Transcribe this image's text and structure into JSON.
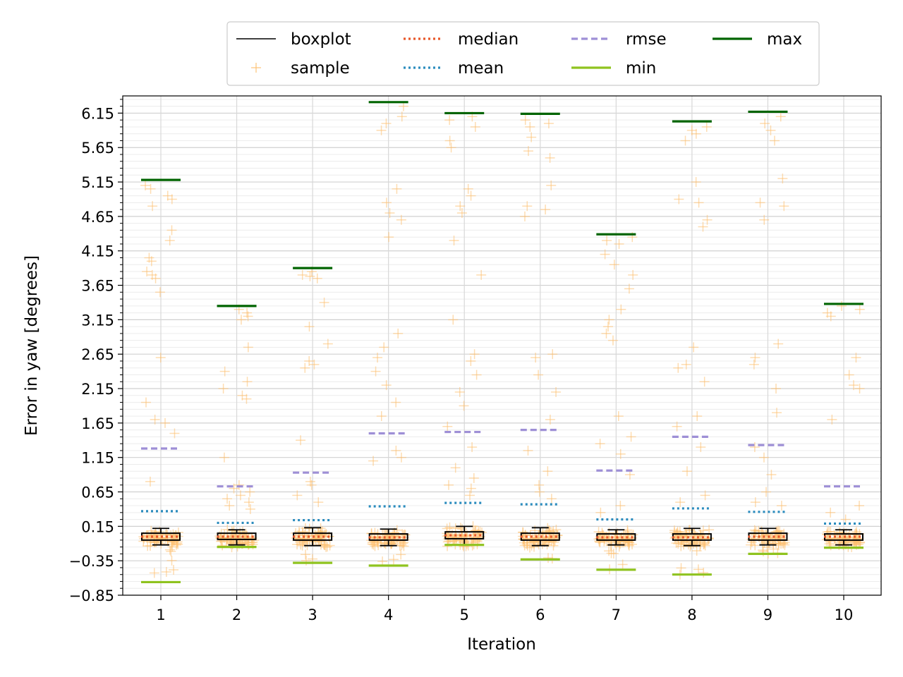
{
  "chart_data": {
    "type": "box",
    "title": "",
    "xlabel": "Iteration",
    "ylabel": "Error in yaw [degrees]",
    "categories": [
      "1",
      "2",
      "3",
      "4",
      "5",
      "6",
      "7",
      "8",
      "9",
      "10"
    ],
    "yticks": [
      "−0.85",
      "−0.35",
      "0.15",
      "0.65",
      "1.15",
      "1.65",
      "2.15",
      "2.65",
      "3.15",
      "3.65",
      "4.15",
      "4.65",
      "5.15",
      "5.65",
      "6.15"
    ],
    "ylim": [
      -0.85,
      6.4
    ],
    "grid": true,
    "legend": {
      "position": "top-center",
      "entries": [
        {
          "label": "boxplot",
          "color": "#000000",
          "style": "solid"
        },
        {
          "label": "sample",
          "color": "#fdbf6f",
          "style": "marker-plus"
        },
        {
          "label": "median",
          "color": "#e8582a",
          "style": "dotted"
        },
        {
          "label": "mean",
          "color": "#2b8cbe",
          "style": "dotted"
        },
        {
          "label": "rmse",
          "color": "#9e8fd6",
          "style": "dashed"
        },
        {
          "label": "min",
          "color": "#8fc31f",
          "style": "solid"
        },
        {
          "label": "max",
          "color": "#006400",
          "style": "solid"
        }
      ]
    },
    "series": [
      {
        "name": "median",
        "values": [
          0.0,
          0.0,
          0.0,
          -0.01,
          0.02,
          0.0,
          -0.01,
          -0.01,
          0.0,
          0.0
        ]
      },
      {
        "name": "mean",
        "values": [
          0.37,
          0.2,
          0.24,
          0.44,
          0.49,
          0.47,
          0.25,
          0.41,
          0.36,
          0.19
        ]
      },
      {
        "name": "rmse",
        "values": [
          1.28,
          0.73,
          0.93,
          1.5,
          1.52,
          1.55,
          0.96,
          1.45,
          1.33,
          0.73
        ]
      },
      {
        "name": "min",
        "values": [
          -0.66,
          -0.15,
          -0.38,
          -0.42,
          -0.12,
          -0.33,
          -0.48,
          -0.55,
          -0.25,
          -0.16
        ]
      },
      {
        "name": "max",
        "values": [
          5.18,
          3.35,
          3.9,
          6.31,
          6.15,
          6.14,
          4.39,
          6.03,
          6.17,
          3.38
        ]
      }
    ],
    "boxes": [
      {
        "q1": -0.05,
        "q3": 0.05,
        "whisker_low": -0.12,
        "whisker_high": 0.12
      },
      {
        "q1": -0.04,
        "q3": 0.05,
        "whisker_low": -0.12,
        "whisker_high": 0.1
      },
      {
        "q1": -0.05,
        "q3": 0.05,
        "whisker_low": -0.13,
        "whisker_high": 0.13
      },
      {
        "q1": -0.05,
        "q3": 0.04,
        "whisker_low": -0.13,
        "whisker_high": 0.11
      },
      {
        "q1": -0.03,
        "q3": 0.07,
        "whisker_low": -0.12,
        "whisker_high": 0.15
      },
      {
        "q1": -0.05,
        "q3": 0.05,
        "whisker_low": -0.13,
        "whisker_high": 0.13
      },
      {
        "q1": -0.05,
        "q3": 0.04,
        "whisker_low": -0.12,
        "whisker_high": 0.1
      },
      {
        "q1": -0.05,
        "q3": 0.04,
        "whisker_low": -0.13,
        "whisker_high": 0.12
      },
      {
        "q1": -0.05,
        "q3": 0.05,
        "whisker_low": -0.12,
        "whisker_high": 0.12
      },
      {
        "q1": -0.05,
        "q3": 0.04,
        "whisker_low": -0.12,
        "whisker_high": 0.1
      }
    ],
    "outliers": [
      [
        4.95,
        5.05,
        4.9,
        4.45,
        4.3,
        4.0,
        4.05,
        3.85,
        3.8,
        3.75,
        3.55,
        2.6,
        1.95,
        1.7,
        1.65,
        1.5,
        0.8,
        5.1,
        4.8
      ],
      [
        3.3,
        3.25,
        3.2,
        3.15,
        2.75,
        2.4,
        2.25,
        2.15,
        2.05,
        2.0,
        1.15,
        0.75,
        0.7,
        0.65,
        0.6,
        0.55,
        0.5,
        0.45,
        0.4
      ],
      [
        3.85,
        3.8,
        3.78,
        3.75,
        3.4,
        3.05,
        2.8,
        2.55,
        2.5,
        2.45,
        1.4,
        0.8,
        0.75,
        0.6,
        0.5
      ],
      [
        6.25,
        6.1,
        6.0,
        5.9,
        5.05,
        4.85,
        4.7,
        4.6,
        4.35,
        2.95,
        2.75,
        2.6,
        2.4,
        2.2,
        1.95,
        1.75,
        1.25,
        1.15,
        1.1
      ],
      [
        6.1,
        6.05,
        5.95,
        5.75,
        5.65,
        5.05,
        4.95,
        4.8,
        4.7,
        4.3,
        3.8,
        3.15,
        2.65,
        2.55,
        2.35,
        2.1,
        1.9,
        1.6,
        1.3,
        1.0,
        0.85,
        0.75,
        0.7,
        0.6
      ],
      [
        6.05,
        6.0,
        5.95,
        5.8,
        5.6,
        5.5,
        5.1,
        4.8,
        4.75,
        4.65,
        2.65,
        2.6,
        2.35,
        2.1,
        1.7,
        1.25,
        0.95,
        0.75,
        0.65,
        0.55
      ],
      [
        4.35,
        4.3,
        4.25,
        4.1,
        3.95,
        3.8,
        3.6,
        3.3,
        3.15,
        3.05,
        2.95,
        2.85,
        1.75,
        1.45,
        1.35,
        1.2,
        0.9,
        0.45,
        0.35
      ],
      [
        5.95,
        5.9,
        5.85,
        5.75,
        5.15,
        4.9,
        4.85,
        4.6,
        4.5,
        2.75,
        2.5,
        2.45,
        2.25,
        1.75,
        1.6,
        1.3,
        0.95,
        0.6,
        0.5
      ],
      [
        6.1,
        6.0,
        5.9,
        5.75,
        5.2,
        4.85,
        4.8,
        4.6,
        2.8,
        2.6,
        2.5,
        2.15,
        1.8,
        1.3,
        1.15,
        0.9,
        0.65,
        0.5,
        0.45
      ],
      [
        3.35,
        3.3,
        3.25,
        3.2,
        2.6,
        2.35,
        2.2,
        2.15,
        1.7,
        0.45,
        0.35,
        0.25
      ]
    ]
  }
}
